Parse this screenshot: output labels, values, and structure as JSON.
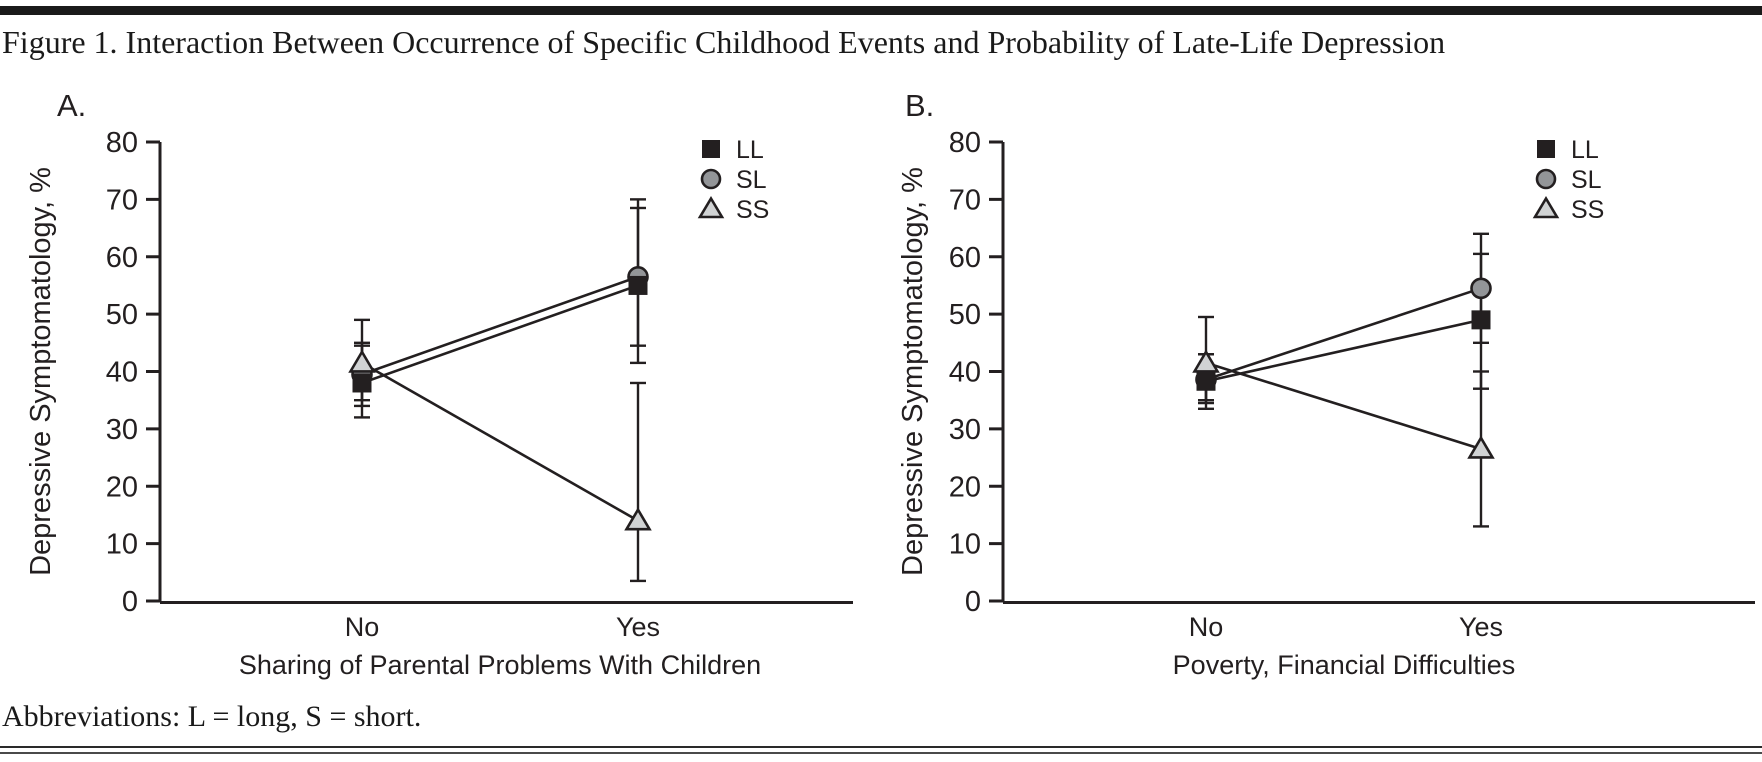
{
  "title": "Figure 1. Interaction Between Occurrence of Specific Childhood Events and Probability of Late-Life Depression",
  "footnote": "Abbreviations: L = long, S = short.",
  "colors": {
    "ink": "#231f20",
    "ll_fill": "#231f20",
    "sl_fill": "#939598",
    "ss_fill": "#d1d3d4"
  },
  "legend": {
    "entries": [
      "LL",
      "SL",
      "SS"
    ],
    "position": "top-right"
  },
  "chart_data": [
    {
      "type": "line",
      "panel_label": "A.",
      "xlabel": "Sharing of Parental Problems With Children",
      "ylabel": "Depressive Symptomatology, %",
      "categories": [
        "No",
        "Yes"
      ],
      "ylim": [
        0,
        80
      ],
      "yticks": [
        0,
        10,
        20,
        30,
        40,
        50,
        60,
        70,
        80
      ],
      "grid": false,
      "legend_entries": [
        "LL",
        "SL",
        "SS"
      ],
      "series": [
        {
          "name": "LL",
          "marker": "square",
          "values": [
            38.0,
            55.0
          ],
          "err_lo": [
            32.0,
            41.5
          ],
          "err_hi": [
            44.5,
            68.5
          ]
        },
        {
          "name": "SL",
          "marker": "circle",
          "values": [
            39.5,
            56.5
          ],
          "err_lo": [
            34.0,
            44.5
          ],
          "err_hi": [
            45.0,
            70.0
          ]
        },
        {
          "name": "SS",
          "marker": "triangle",
          "values": [
            41.5,
            14.0
          ],
          "err_lo": [
            35.0,
            3.5
          ],
          "err_hi": [
            49.0,
            38.0
          ]
        }
      ]
    },
    {
      "type": "line",
      "panel_label": "B.",
      "xlabel": "Poverty, Financial Difficulties",
      "ylabel": "Depressive Symptomatology, %",
      "categories": [
        "No",
        "Yes"
      ],
      "ylim": [
        0,
        80
      ],
      "yticks": [
        0,
        10,
        20,
        30,
        40,
        50,
        60,
        70,
        80
      ],
      "grid": false,
      "legend_entries": [
        "LL",
        "SL",
        "SS"
      ],
      "series": [
        {
          "name": "LL",
          "marker": "square",
          "values": [
            38.3,
            49.0
          ],
          "err_lo": [
            33.5,
            37.0
          ],
          "err_hi": [
            43.0,
            60.5
          ]
        },
        {
          "name": "SL",
          "marker": "circle",
          "values": [
            38.6,
            54.5
          ],
          "err_lo": [
            34.5,
            45.0
          ],
          "err_hi": [
            43.0,
            64.0
          ]
        },
        {
          "name": "SS",
          "marker": "triangle",
          "values": [
            41.5,
            26.5
          ],
          "err_lo": [
            35.0,
            13.0
          ],
          "err_hi": [
            49.5,
            40.0
          ]
        }
      ]
    }
  ]
}
